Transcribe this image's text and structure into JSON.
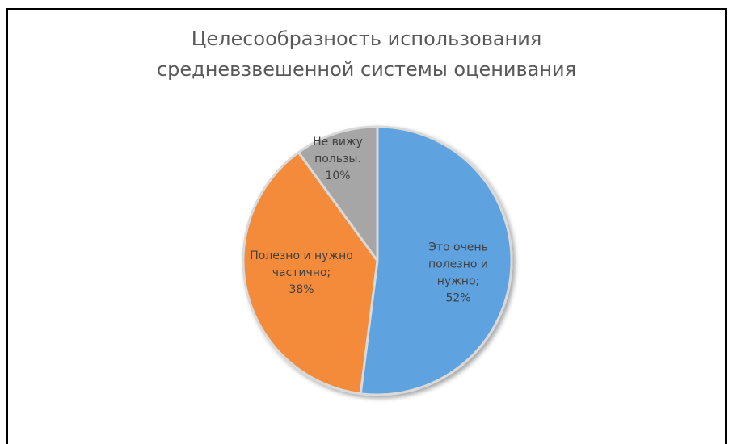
{
  "chart_data": {
    "type": "pie",
    "title_lines": [
      "Целесообразность использования",
      "средневзвешенной системы оценивания"
    ],
    "categories": [
      "Это очень полезно и нужно",
      "Полезно и нужно частично",
      "Не вижу пользы."
    ],
    "values": [
      52,
      38,
      10
    ],
    "colors": [
      "#5fa2e0",
      "#f48b3a",
      "#a6a6a6"
    ],
    "data_labels": [
      [
        "Это очень",
        "полезно и",
        "нужно;",
        "52%"
      ],
      [
        "Полезно и нужно",
        "частично;",
        "38%"
      ],
      [
        "Не вижу",
        "пользы.",
        "10%"
      ]
    ],
    "legend": "none",
    "start_angle_deg": 0,
    "direction": "clockwise"
  }
}
